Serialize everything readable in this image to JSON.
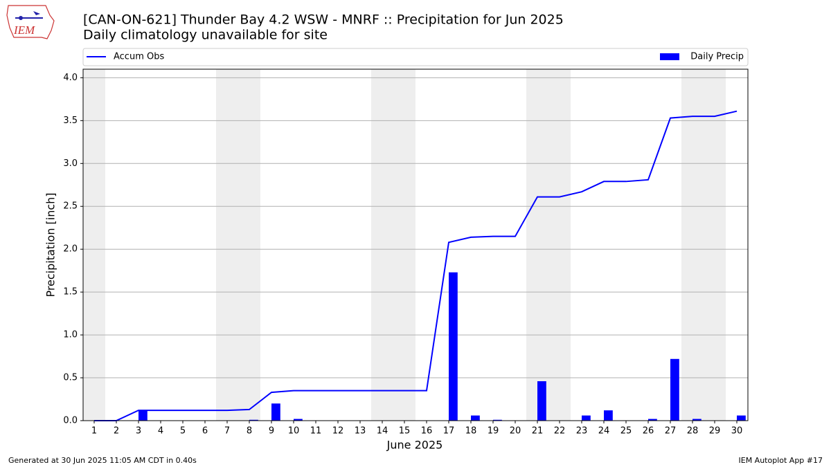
{
  "logo_text": "IEM",
  "footer_left": "Generated at 30 Jun 2025 11:05 AM CDT in 0.40s",
  "footer_right": "IEM Autoplot App #17",
  "chart_data": {
    "type": "combo",
    "title": "[CAN-ON-621] Thunder Bay 4.2 WSW - MNRF :: Precipitation for Jun 2025",
    "subtitle": "Daily climatology unavailable for site",
    "xlabel": "June 2025",
    "ylabel": "Precipitation [inch]",
    "x": [
      1,
      2,
      3,
      4,
      5,
      6,
      7,
      8,
      9,
      10,
      11,
      12,
      13,
      14,
      15,
      16,
      17,
      18,
      19,
      20,
      21,
      22,
      23,
      24,
      25,
      26,
      27,
      28,
      29,
      30
    ],
    "series": [
      {
        "name": "Accum Obs",
        "type": "line",
        "color": "#0000ff",
        "values": [
          0,
          0,
          0.12,
          0.12,
          0.12,
          0.12,
          0.12,
          0.13,
          0.33,
          0.35,
          0.35,
          0.35,
          0.35,
          0.35,
          0.35,
          0.35,
          2.08,
          2.14,
          2.15,
          2.15,
          2.61,
          2.61,
          2.67,
          2.79,
          2.79,
          2.81,
          3.53,
          3.55,
          3.55,
          3.61
        ]
      },
      {
        "name": "Daily Precip",
        "type": "bar",
        "color": "#0000ff",
        "values": [
          0,
          0,
          0.12,
          0,
          0,
          0,
          0,
          0.01,
          0.2,
          0.02,
          0,
          0,
          0,
          0,
          0,
          0,
          1.73,
          0.06,
          0.01,
          0,
          0.46,
          0,
          0.06,
          0.12,
          0,
          0.02,
          0.72,
          0.02,
          0,
          0.06
        ]
      }
    ],
    "shaded_x": [
      [
        0.5,
        1.5
      ],
      [
        6.5,
        8.5
      ],
      [
        13.5,
        15.5
      ],
      [
        20.5,
        22.5
      ],
      [
        27.5,
        29.5
      ]
    ],
    "shade_color": "#eeeeee",
    "xlim": [
      0.5,
      30.5
    ],
    "xticks": [
      1,
      2,
      3,
      4,
      5,
      6,
      7,
      8,
      9,
      10,
      11,
      12,
      13,
      14,
      15,
      16,
      17,
      18,
      19,
      20,
      21,
      22,
      23,
      24,
      25,
      26,
      27,
      28,
      29,
      30
    ],
    "ylim": [
      0,
      4.1
    ],
    "yticks": [
      {
        "value": 0,
        "label": "0.0"
      },
      0.5,
      {
        "value": 1,
        "label": "1.0"
      },
      1.5,
      {
        "value": 2,
        "label": "2.0"
      },
      2.5,
      {
        "value": 3,
        "label": "3.0"
      },
      3.5,
      {
        "value": 4,
        "label": "4.0"
      }
    ],
    "grid": true
  }
}
